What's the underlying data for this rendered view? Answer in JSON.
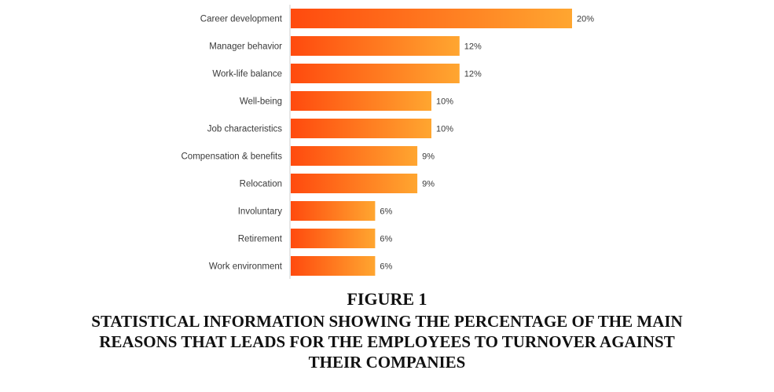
{
  "chart_data": {
    "type": "bar",
    "orientation": "horizontal",
    "categories": [
      "Career development",
      "Manager behavior",
      "Work-life balance",
      "Well-being",
      "Job characteristics",
      "Compensation & benefits",
      "Relocation",
      "Involuntary",
      "Retirement",
      "Work environment"
    ],
    "values": [
      20,
      12,
      12,
      10,
      10,
      9,
      9,
      6,
      6,
      6
    ],
    "value_labels": [
      "20%",
      "12%",
      "12%",
      "10%",
      "10%",
      "9%",
      "9%",
      "6%",
      "6%",
      "6%"
    ],
    "xlim": [
      0,
      20
    ],
    "grid": false,
    "colors": {
      "bar_start": "#ff4a0e",
      "bar_end": "#ffa630",
      "axis": "#cccccc"
    }
  },
  "caption": {
    "figure_label": "FIGURE 1",
    "lines": [
      "STATISTICAL INFORMATION SHOWING THE PERCENTAGE OF THE MAIN",
      "REASONS THAT LEADS FOR THE EMPLOYEES TO TURNOVER AGAINST",
      "THEIR COMPANIES"
    ]
  }
}
